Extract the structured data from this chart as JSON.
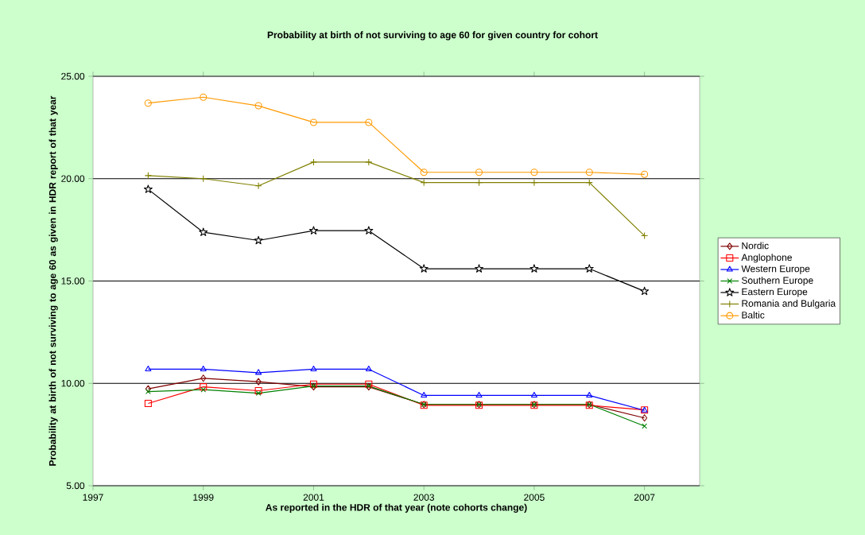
{
  "chart_data": {
    "type": "line",
    "title": "Probability at birth of not surviving to age 60 for given country for cohort",
    "xlabel": "As reported in the HDR of that year (note cohorts change)",
    "ylabel": "Probability at birth of not surviving to age 60 as given in HDR report of that year",
    "x": [
      1998,
      1999,
      2000,
      2001,
      2002,
      2003,
      2004,
      2005,
      2006,
      2007
    ],
    "series": [
      {
        "name": "Nordic",
        "color": "#800000",
        "marker": "diamond",
        "values": [
          9.73,
          10.25,
          10.08,
          9.83,
          9.83,
          8.97,
          8.97,
          8.97,
          8.97,
          8.31
        ]
      },
      {
        "name": "Anglophone",
        "color": "#ff0000",
        "marker": "square",
        "values": [
          9.02,
          9.83,
          9.64,
          9.96,
          9.96,
          8.93,
          8.93,
          8.93,
          8.93,
          8.7
        ]
      },
      {
        "name": "Western Europe",
        "color": "#0000ff",
        "marker": "triangle",
        "values": [
          10.69,
          10.69,
          10.52,
          10.69,
          10.69,
          9.41,
          9.41,
          9.41,
          9.41,
          8.68
        ]
      },
      {
        "name": "Southern Europe",
        "color": "#008000",
        "marker": "cross",
        "values": [
          9.6,
          9.69,
          9.52,
          9.87,
          9.87,
          8.97,
          8.97,
          8.97,
          8.97,
          7.91
        ]
      },
      {
        "name": "Eastern Europe",
        "color": "#000000",
        "marker": "star",
        "values": [
          19.48,
          17.38,
          16.98,
          17.46,
          17.46,
          15.6,
          15.6,
          15.6,
          15.6,
          14.5
        ]
      },
      {
        "name": "Romania and Bulgaria",
        "color": "#808000",
        "marker": "plus",
        "values": [
          20.15,
          20.0,
          19.65,
          20.81,
          20.81,
          19.81,
          19.81,
          19.81,
          19.81,
          17.21
        ]
      },
      {
        "name": "Baltic",
        "color": "#ff9900",
        "marker": "circle",
        "values": [
          23.69,
          23.98,
          23.56,
          22.75,
          22.75,
          20.31,
          20.31,
          20.31,
          20.31,
          20.21
        ]
      }
    ],
    "xlim": [
      1997,
      2008
    ],
    "xticks": [
      1997,
      1999,
      2001,
      2003,
      2005,
      2007
    ],
    "ylim": [
      5,
      25
    ],
    "yticks": [
      {
        "value": 5,
        "label": "5.00"
      },
      {
        "value": 10,
        "label": "10.00"
      },
      {
        "value": 15,
        "label": "15.00"
      },
      {
        "value": 20,
        "label": "20.00"
      },
      {
        "value": 25,
        "label": "25.00"
      }
    ],
    "grid": "y",
    "legend": "right",
    "line_style": "solid"
  }
}
